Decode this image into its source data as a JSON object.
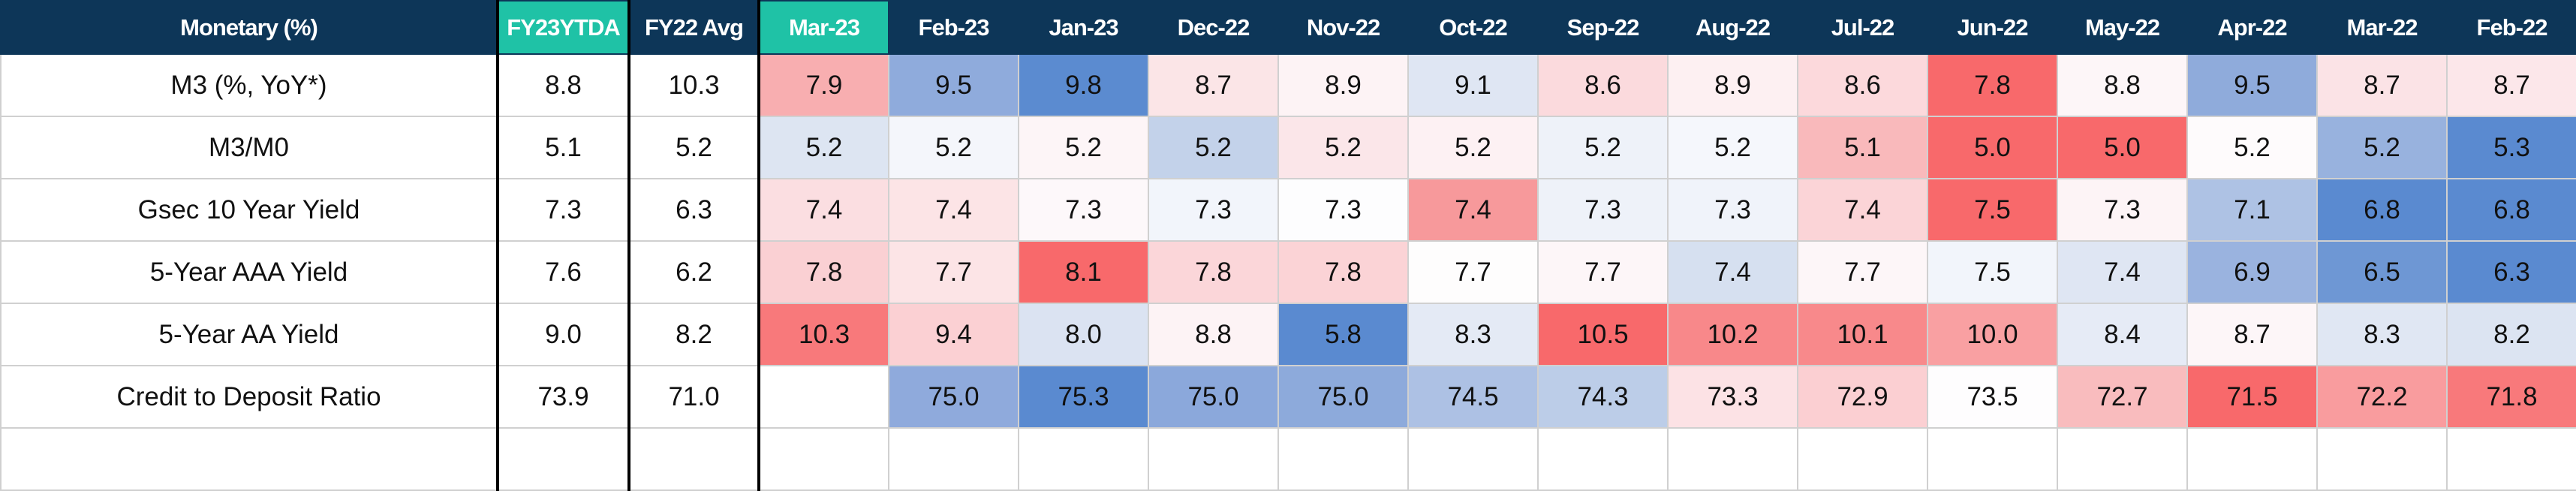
{
  "table": {
    "header": [
      "Monetary (%)",
      "FY23YTDA",
      "FY22 Avg",
      "Mar-23",
      "Feb-23",
      "Jan-23",
      "Dec-22",
      "Nov-22",
      "Oct-22",
      "Sep-22",
      "Aug-22",
      "Jul-22",
      "Jun-22",
      "May-22",
      "Apr-22",
      "Mar-22",
      "Feb-22"
    ],
    "highlight_color": "#1fc2a6",
    "header_color": "#0d3658",
    "rows": [
      {
        "cells": [
          "M3 (%, YoY*)",
          "8.8",
          "10.3",
          "7.9",
          "9.5",
          "9.8",
          "8.7",
          "8.9",
          "9.1",
          "8.6",
          "8.9",
          "8.6",
          "7.8",
          "8.8",
          "9.5",
          "8.7",
          "8.7"
        ],
        "colors": [
          "#f8aeb0",
          "#8fabdc",
          "#5b8bd0",
          "#fbe5e7",
          "#fdf3f5",
          "#dfe6f3",
          "#fbdadd",
          "#fdf0f2",
          "#fcd9dc",
          "#f8696b",
          "#fdf6f8",
          "#8fabdb",
          "#fbe3e6",
          "#fce7ea"
        ]
      },
      {
        "cells": [
          "M3/M0",
          "5.1",
          "5.2",
          "5.2",
          "5.2",
          "5.2",
          "5.2",
          "5.2",
          "5.2",
          "5.2",
          "5.2",
          "5.1",
          "5.0",
          "5.0",
          "5.2",
          "5.2",
          "5.3"
        ],
        "colors": [
          "#dde5f2",
          "#f4f6fb",
          "#fdf5f7",
          "#c3d2ea",
          "#fbe6e9",
          "#fdf1f3",
          "#eef2f9",
          "#f5f7fc",
          "#f9b9bb",
          "#f8696b",
          "#f8696b",
          "#fefbfc",
          "#98b2de",
          "#5a8ad0"
        ]
      },
      {
        "cells": [
          "Gsec 10 Year Yield",
          "7.3",
          "6.3",
          "7.4",
          "7.4",
          "7.3",
          "7.3",
          "7.3",
          "7.4",
          "7.3",
          "7.3",
          "7.4",
          "7.5",
          "7.3",
          "7.1",
          "6.8",
          "6.8"
        ],
        "colors": [
          "#fbdee1",
          "#fce4e6",
          "#fdf8fa",
          "#f2f5fb",
          "#fdfdfe",
          "#f7999b",
          "#eef2f9",
          "#f0f3fa",
          "#fbd4d7",
          "#f8696b",
          "#fdf4f6",
          "#aec2e4",
          "#5a8ad0",
          "#5a8ad0"
        ]
      },
      {
        "cells": [
          "5-Year AAA Yield",
          "7.6",
          "6.2",
          "7.8",
          "7.7",
          "8.1",
          "7.8",
          "7.8",
          "7.7",
          "7.7",
          "7.4",
          "7.7",
          "7.5",
          "7.4",
          "6.9",
          "6.5",
          "6.3"
        ],
        "colors": [
          "#fad0d3",
          "#fce4e6",
          "#f8696b",
          "#fbd6d9",
          "#fbd3d6",
          "#fefdfd",
          "#fdf6f8",
          "#d6e0f0",
          "#fdf6f8",
          "#f2f5fb",
          "#dfe6f3",
          "#9ab3df",
          "#6e97d4",
          "#5a8ad0"
        ]
      },
      {
        "cells": [
          "5-Year AA Yield",
          "9.0",
          "8.2",
          "10.3",
          "9.4",
          "8.0",
          "8.8",
          "5.8",
          "8.3",
          "10.5",
          "10.2",
          "10.1",
          "10.0",
          "8.4",
          "8.7",
          "8.3",
          "8.2"
        ],
        "colors": [
          "#f8797b",
          "#fbd0d3",
          "#dbe3f2",
          "#fdf3f5",
          "#5a8ad0",
          "#e4eaf5",
          "#f8696b",
          "#f8888a",
          "#f8898b",
          "#f9a0a2",
          "#e6ebf6",
          "#fdf6f8",
          "#e0e7f3",
          "#dce4f2"
        ]
      },
      {
        "cells": [
          "Credit to Deposit Ratio",
          "73.9",
          "71.0",
          null,
          "75.0",
          "75.3",
          "75.0",
          "75.0",
          "74.5",
          "74.3",
          "73.3",
          "72.9",
          "73.5",
          "72.7",
          "71.5",
          "72.2",
          "71.8"
        ],
        "colors": [
          "#ffffff",
          "#8faadc",
          "#5a8ad0",
          "#8ba8db",
          "#8daadb",
          "#adc1e4",
          "#bccde8",
          "#fce2e5",
          "#fbcfd2",
          "#fefdfe",
          "#f9bcbe",
          "#f8696b",
          "#f99c9e",
          "#f8797b"
        ]
      }
    ]
  }
}
